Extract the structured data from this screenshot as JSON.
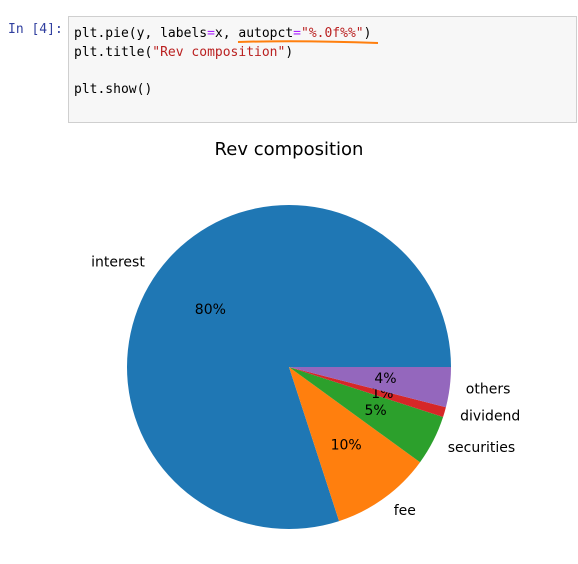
{
  "prompt": "In [4]:",
  "code": {
    "lines": [
      [
        {
          "text": "plt.pie(y, labels",
          "color": "#000000"
        },
        {
          "text": "=",
          "color": "#aa22ff"
        },
        {
          "text": "x, autopct",
          "color": "#000000"
        },
        {
          "text": "=",
          "color": "#aa22ff"
        },
        {
          "text": "\"%.0f%%\"",
          "color": "#ba2121"
        },
        {
          "text": ")",
          "color": "#000000"
        }
      ],
      [
        {
          "text": "plt.title(",
          "color": "#000000"
        },
        {
          "text": "\"Rev composition\"",
          "color": "#ba2121"
        },
        {
          "text": ")",
          "color": "#000000"
        }
      ],
      [],
      [
        {
          "text": "plt.show()",
          "color": "#000000"
        }
      ]
    ]
  },
  "chart_data": {
    "type": "pie",
    "title": "Rev composition",
    "categories": [
      "interest",
      "fee",
      "securities",
      "dividend",
      "others"
    ],
    "values": [
      80,
      10,
      5,
      1,
      4
    ],
    "value_labels": [
      "80%",
      "10%",
      "5%",
      "1%",
      "4%"
    ],
    "colors": [
      "#1f77b4",
      "#ff7f0e",
      "#2ca02c",
      "#d62728",
      "#9467bd"
    ],
    "start_angle": 0,
    "counterclockwise": true
  }
}
